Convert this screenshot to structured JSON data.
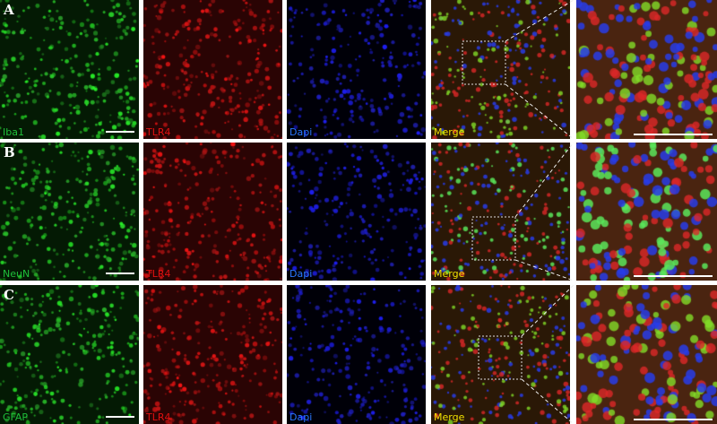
{
  "rows": [
    {
      "letter": "A",
      "labels": [
        "Iba1",
        "TLR4",
        "Dapi",
        "Merge"
      ]
    },
    {
      "letter": "B",
      "labels": [
        "NeuN",
        "TLR4",
        "Dapi",
        "Merge"
      ]
    },
    {
      "letter": "C",
      "labels": [
        "GFAP",
        "TLR4",
        "Dapi",
        "Merge"
      ]
    }
  ],
  "label_colors": {
    "green": "#1fbf3a",
    "red": "#e01010",
    "blue": "#2a78ff",
    "merge": "#f0e000"
  }
}
